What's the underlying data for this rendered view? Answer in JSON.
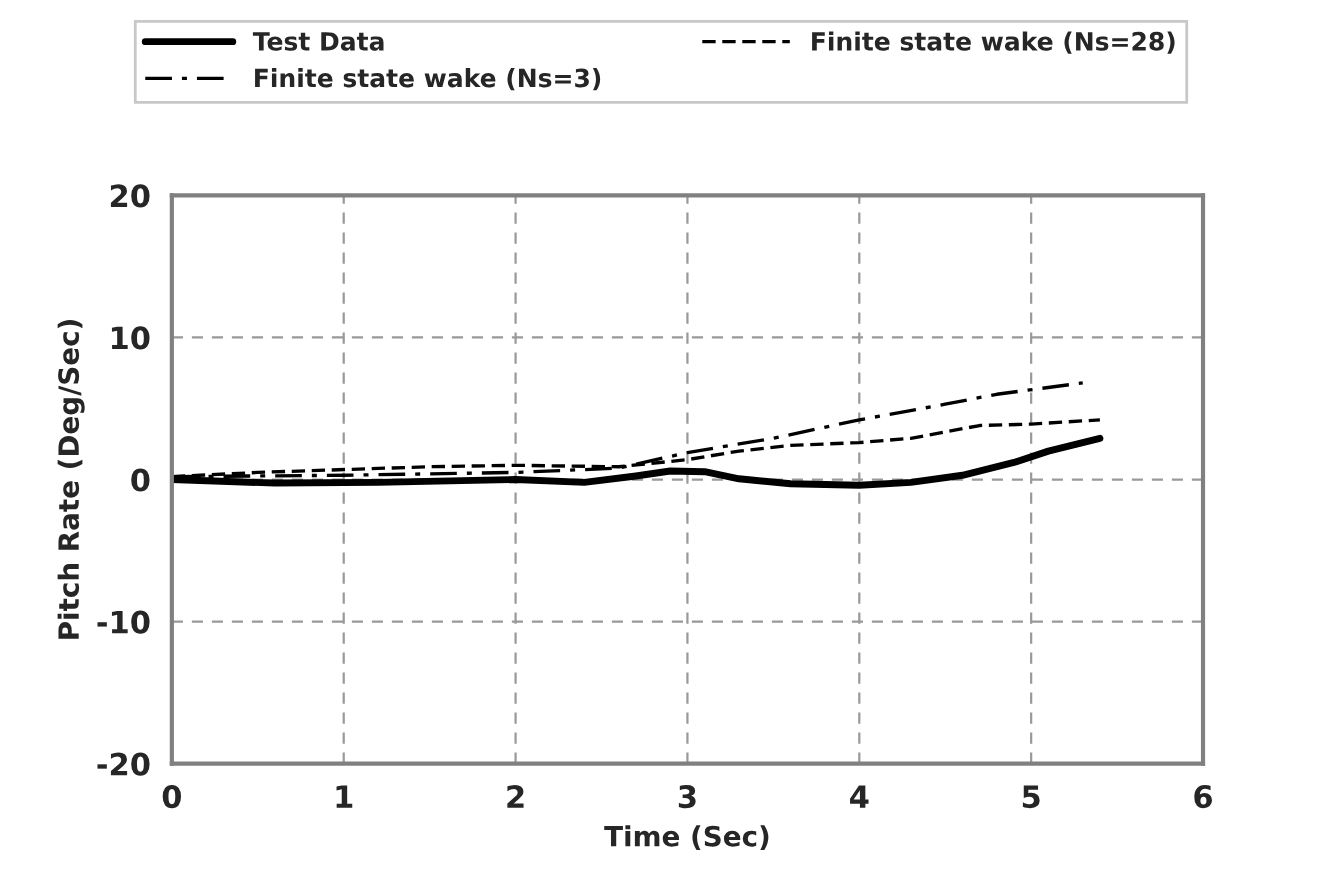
{
  "chart_data": {
    "type": "line",
    "xlabel": "Time (Sec)",
    "ylabel": "Pitch Rate (Deg/Sec)",
    "xlim": [
      0,
      6
    ],
    "xticks": [
      0,
      1,
      2,
      3,
      4,
      5,
      6
    ],
    "ylim": [
      -20,
      20
    ],
    "yticks": [
      -20,
      -10,
      0,
      10,
      20
    ],
    "grid": true,
    "legend": "top",
    "series": [
      {
        "name": "Test Data",
        "color": "#000000",
        "line_style": "solid",
        "x": [
          0,
          0.6,
          1.2,
          2.0,
          2.4,
          2.7,
          2.9,
          3.1,
          3.3,
          3.6,
          4.0,
          4.3,
          4.6,
          4.9,
          5.1,
          5.4
        ],
        "values": [
          0,
          -0.25,
          -0.2,
          0,
          -0.2,
          0.25,
          0.6,
          0.55,
          0.05,
          -0.3,
          -0.4,
          -0.2,
          0.3,
          1.2,
          2.0,
          2.9
        ]
      },
      {
        "name": "Finite state wake (Ns=28)",
        "color": "#000000",
        "line_style": "dashed",
        "x": [
          0,
          0.5,
          1.5,
          2.0,
          2.6,
          3.0,
          3.3,
          3.6,
          4.0,
          4.3,
          4.7,
          5.0,
          5.4
        ],
        "values": [
          0.2,
          0.5,
          0.9,
          1.0,
          0.9,
          1.4,
          2.0,
          2.4,
          2.6,
          2.9,
          3.8,
          3.9,
          4.2
        ]
      },
      {
        "name": "Finite state wake (Ns=3)",
        "color": "#000000",
        "line_style": "dashdot",
        "x": [
          0,
          1.0,
          2.0,
          2.6,
          3.0,
          3.5,
          4.0,
          4.5,
          4.8,
          5.3
        ],
        "values": [
          0.2,
          0.3,
          0.5,
          0.8,
          1.9,
          2.9,
          4.2,
          5.3,
          6.0,
          6.8
        ]
      }
    ]
  }
}
